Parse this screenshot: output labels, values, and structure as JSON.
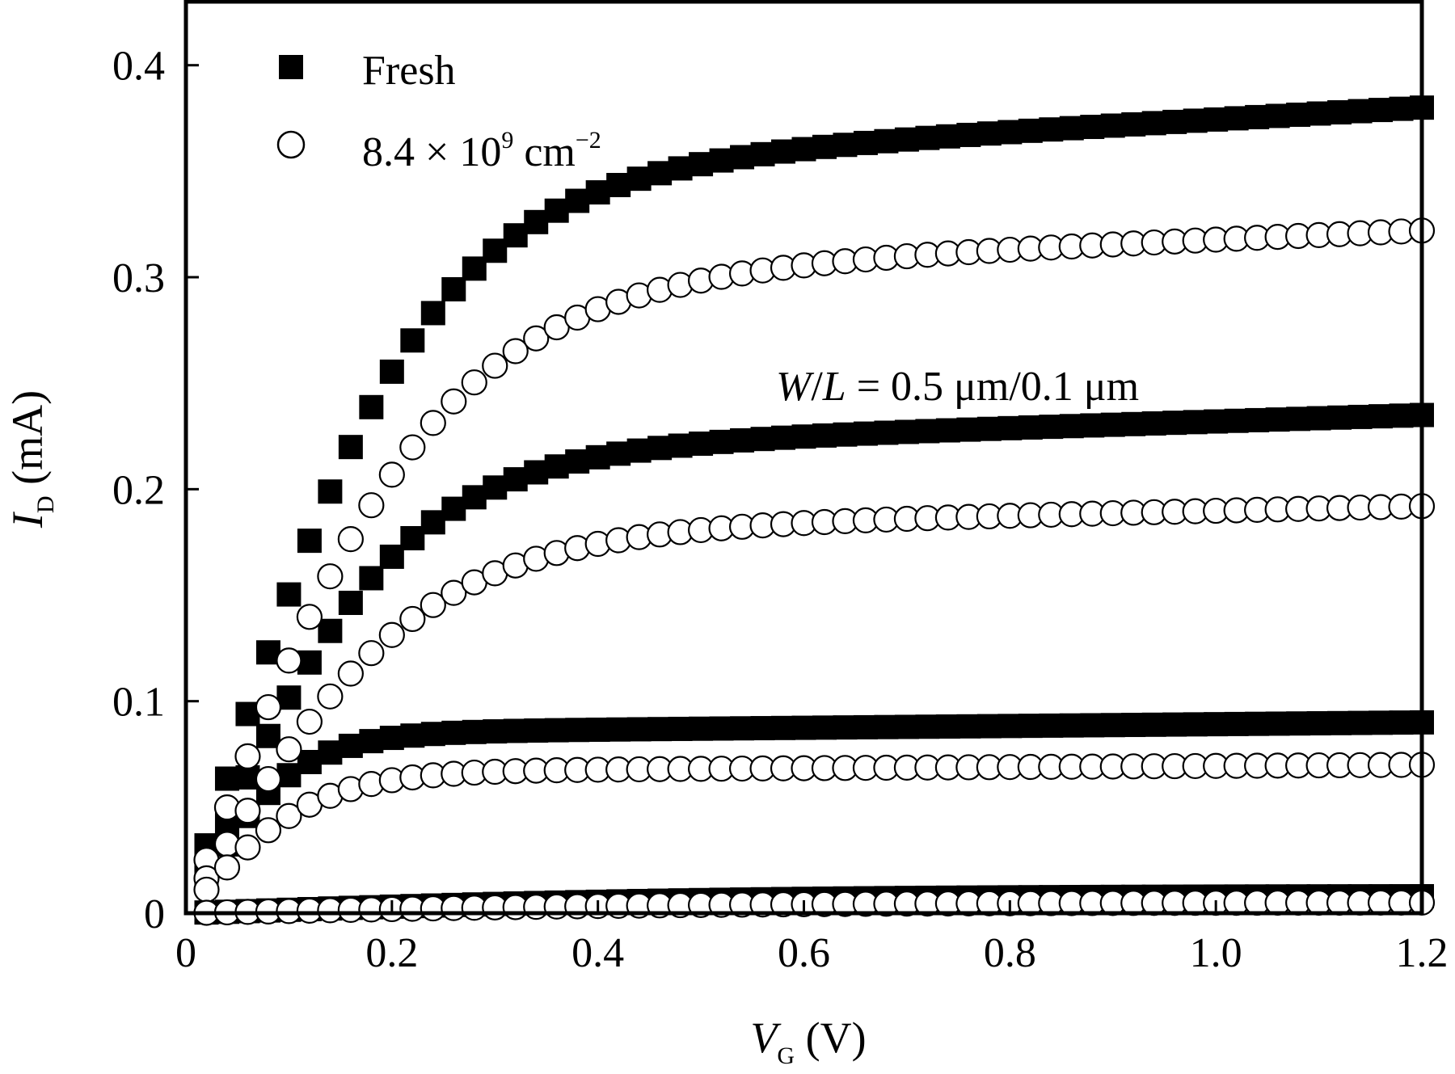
{
  "chart_data": {
    "type": "scatter",
    "xlabel": {
      "main": "V",
      "sub": "G",
      "unit": " (V)"
    },
    "ylabel": {
      "main": "I",
      "sub": "D",
      "unit": " (mA)"
    },
    "xlim": [
      0,
      1.2
    ],
    "ylim": [
      0,
      0.43
    ],
    "x_ticks": [
      "0",
      "0.2",
      "0.4",
      "0.6",
      "0.8",
      "1.0",
      "1.2"
    ],
    "x_tick_values": [
      0,
      0.2,
      0.4,
      0.6,
      0.8,
      1.0,
      1.2
    ],
    "y_ticks": [
      "0",
      "0.1",
      "0.2",
      "0.3",
      "0.4"
    ],
    "y_tick_values": [
      0,
      0.1,
      0.2,
      0.3,
      0.4
    ],
    "grid": false,
    "legend_position": "top-left",
    "legend": [
      {
        "label": "Fresh",
        "marker": "filled-square"
      },
      {
        "label": "8.4 × 10",
        "sup": "9",
        "label_after": " cm",
        "sup2": "−2",
        "marker": "open-circle"
      }
    ],
    "annotation": {
      "text_italic_1": "W",
      "text_mid": "/",
      "text_italic_2": "L",
      "text_rest": " = 0.5 μm/0.1 μm"
    },
    "series": [
      {
        "name": "Fresh",
        "marker": "filled-square",
        "curves": [
          {
            "i_sat": 0.38,
            "v_knee": 0.22,
            "slope": 0.08
          },
          {
            "i_sat": 0.235,
            "v_knee": 0.2,
            "slope": 0.07
          },
          {
            "i_sat": 0.09,
            "v_knee": 0.1,
            "slope": 0.05
          },
          {
            "i_sat": 0.008,
            "v_knee": 0.5,
            "slope": 0.003
          }
        ]
      },
      {
        "name": "8.4 × 10^9 cm^-2",
        "marker": "open-circle",
        "curves": [
          {
            "i_sat": 0.322,
            "v_knee": 0.24,
            "slope": 0.07
          },
          {
            "i_sat": 0.192,
            "v_knee": 0.22,
            "slope": 0.06
          },
          {
            "i_sat": 0.07,
            "v_knee": 0.12,
            "slope": 0.04
          },
          {
            "i_sat": 0.005,
            "v_knee": 0.5,
            "slope": 0.002
          }
        ]
      }
    ]
  }
}
